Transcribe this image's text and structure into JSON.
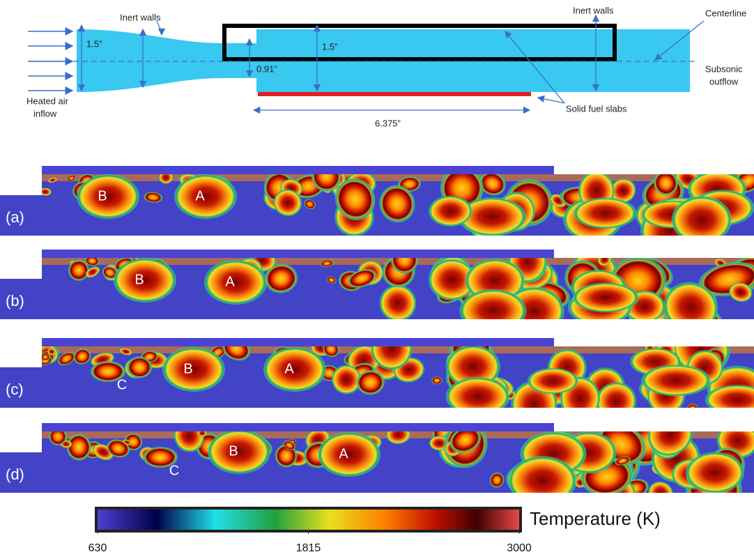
{
  "schematic": {
    "inflow_label": [
      "Heated air",
      "inflow"
    ],
    "inert_walls_left": "Inert walls",
    "inert_walls_right": "Inert walls",
    "inlet_height": "1.5”",
    "duct_height": "1.5”",
    "step_height": "0.91”",
    "centerline": "Centerline",
    "outflow_label": [
      "Subsonic",
      "outflow"
    ],
    "fuel_label": "Solid fuel slabs",
    "fuel_length": "6.375”"
  },
  "panels": [
    {
      "label": "(a)",
      "vortices": [
        "B",
        "A"
      ]
    },
    {
      "label": "(b)",
      "vortices": [
        "B",
        "A"
      ]
    },
    {
      "label": "(c)",
      "vortices": [
        "C",
        "B",
        "A"
      ]
    },
    {
      "label": "(d)",
      "vortices": [
        "C",
        "B",
        "A"
      ]
    }
  ],
  "colorbar": {
    "label": "Temperature (K)",
    "range": [
      630,
      3000
    ],
    "ticks": [
      630,
      1815,
      3000
    ]
  }
}
